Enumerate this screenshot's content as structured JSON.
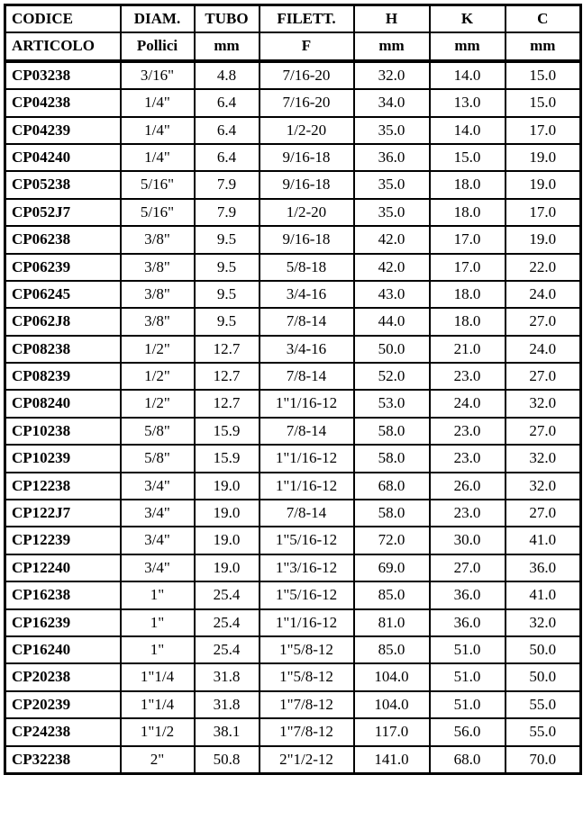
{
  "header": {
    "codice": "CODICE",
    "articolo": "ARTICOLO",
    "diam": "DIAM.",
    "tubo": "TUBO",
    "filett": "FILETT.",
    "h": "H",
    "k": "K",
    "c": "C",
    "pollici": "Pollici",
    "mm": "mm",
    "f": "F"
  },
  "rows": [
    {
      "code": "CP03238",
      "pollici": "3/16\"",
      "tubo": "4.8",
      "filett": "7/16-20",
      "h": "32.0",
      "k": "14.0",
      "c": "15.0"
    },
    {
      "code": "CP04238",
      "pollici": "1/4\"",
      "tubo": "6.4",
      "filett": "7/16-20",
      "h": "34.0",
      "k": "13.0",
      "c": "15.0"
    },
    {
      "code": "CP04239",
      "pollici": "1/4\"",
      "tubo": "6.4",
      "filett": "1/2-20",
      "h": "35.0",
      "k": "14.0",
      "c": "17.0"
    },
    {
      "code": "CP04240",
      "pollici": "1/4\"",
      "tubo": "6.4",
      "filett": "9/16-18",
      "h": "36.0",
      "k": "15.0",
      "c": "19.0"
    },
    {
      "code": "CP05238",
      "pollici": "5/16\"",
      "tubo": "7.9",
      "filett": "9/16-18",
      "h": "35.0",
      "k": "18.0",
      "c": "19.0"
    },
    {
      "code": "CP052J7",
      "pollici": "5/16\"",
      "tubo": "7.9",
      "filett": "1/2-20",
      "h": "35.0",
      "k": "18.0",
      "c": "17.0"
    },
    {
      "code": "CP06238",
      "pollici": "3/8\"",
      "tubo": "9.5",
      "filett": "9/16-18",
      "h": "42.0",
      "k": "17.0",
      "c": "19.0"
    },
    {
      "code": "CP06239",
      "pollici": "3/8\"",
      "tubo": "9.5",
      "filett": "5/8-18",
      "h": "42.0",
      "k": "17.0",
      "c": "22.0"
    },
    {
      "code": "CP06245",
      "pollici": "3/8\"",
      "tubo": "9.5",
      "filett": "3/4-16",
      "h": "43.0",
      "k": "18.0",
      "c": "24.0"
    },
    {
      "code": "CP062J8",
      "pollici": "3/8\"",
      "tubo": "9.5",
      "filett": "7/8-14",
      "h": "44.0",
      "k": "18.0",
      "c": "27.0"
    },
    {
      "code": "CP08238",
      "pollici": "1/2\"",
      "tubo": "12.7",
      "filett": "3/4-16",
      "h": "50.0",
      "k": "21.0",
      "c": "24.0"
    },
    {
      "code": "CP08239",
      "pollici": "1/2\"",
      "tubo": "12.7",
      "filett": "7/8-14",
      "h": "52.0",
      "k": "23.0",
      "c": "27.0"
    },
    {
      "code": "CP08240",
      "pollici": "1/2\"",
      "tubo": "12.7",
      "filett": "1\"1/16-12",
      "h": "53.0",
      "k": "24.0",
      "c": "32.0"
    },
    {
      "code": "CP10238",
      "pollici": "5/8\"",
      "tubo": "15.9",
      "filett": "7/8-14",
      "h": "58.0",
      "k": "23.0",
      "c": "27.0"
    },
    {
      "code": "CP10239",
      "pollici": "5/8\"",
      "tubo": "15.9",
      "filett": "1\"1/16-12",
      "h": "58.0",
      "k": "23.0",
      "c": "32.0"
    },
    {
      "code": "CP12238",
      "pollici": "3/4\"",
      "tubo": "19.0",
      "filett": "1\"1/16-12",
      "h": "68.0",
      "k": "26.0",
      "c": "32.0"
    },
    {
      "code": "CP122J7",
      "pollici": "3/4\"",
      "tubo": "19.0",
      "filett": "7/8-14",
      "h": "58.0",
      "k": "23.0",
      "c": "27.0"
    },
    {
      "code": "CP12239",
      "pollici": "3/4\"",
      "tubo": "19.0",
      "filett": "1\"5/16-12",
      "h": "72.0",
      "k": "30.0",
      "c": "41.0"
    },
    {
      "code": "CP12240",
      "pollici": "3/4\"",
      "tubo": "19.0",
      "filett": "1\"3/16-12",
      "h": "69.0",
      "k": "27.0",
      "c": "36.0"
    },
    {
      "code": "CP16238",
      "pollici": "1\"",
      "tubo": "25.4",
      "filett": "1\"5/16-12",
      "h": "85.0",
      "k": "36.0",
      "c": "41.0"
    },
    {
      "code": "CP16239",
      "pollici": "1\"",
      "tubo": "25.4",
      "filett": "1\"1/16-12",
      "h": "81.0",
      "k": "36.0",
      "c": "32.0"
    },
    {
      "code": "CP16240",
      "pollici": "1\"",
      "tubo": "25.4",
      "filett": "1\"5/8-12",
      "h": "85.0",
      "k": "51.0",
      "c": "50.0"
    },
    {
      "code": "CP20238",
      "pollici": "1\"1/4",
      "tubo": "31.8",
      "filett": "1\"5/8-12",
      "h": "104.0",
      "k": "51.0",
      "c": "50.0"
    },
    {
      "code": "CP20239",
      "pollici": "1\"1/4",
      "tubo": "31.8",
      "filett": "1\"7/8-12",
      "h": "104.0",
      "k": "51.0",
      "c": "55.0"
    },
    {
      "code": "CP24238",
      "pollici": "1\"1/2",
      "tubo": "38.1",
      "filett": "1\"7/8-12",
      "h": "117.0",
      "k": "56.0",
      "c": "55.0"
    },
    {
      "code": "CP32238",
      "pollici": "2\"",
      "tubo": "50.8",
      "filett": "2\"1/2-12",
      "h": "141.0",
      "k": "68.0",
      "c": "70.0"
    }
  ],
  "style": {
    "text_color": "#000000",
    "background_color": "#ffffff",
    "border_color": "#000000",
    "font_family": "Times New Roman",
    "header_fontsize": 17,
    "body_fontsize": 17
  }
}
